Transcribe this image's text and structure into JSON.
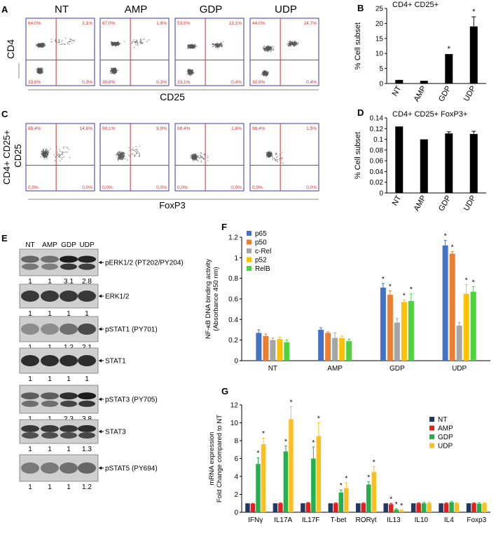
{
  "panel_labels": {
    "A": "A",
    "B": "B",
    "C": "C",
    "D": "D",
    "E": "E",
    "F": "F",
    "G": "G"
  },
  "flow_A": {
    "titles": [
      "NT",
      "AMP",
      "GDP",
      "UDP"
    ],
    "ylabel": "CD4",
    "xlabel": "CD25",
    "quadrants": [
      {
        "ul": "64,0%",
        "ur": "2,1%",
        "ll": "33,6%",
        "lr": "0,3%"
      },
      {
        "ul": "67,0%",
        "ur": "1,8%",
        "ll": "30,8%",
        "lr": "0,3%"
      },
      {
        "ul": "53,5%",
        "ur": "13,1%",
        "ll": "33,1%",
        "lr": "0,4%"
      },
      {
        "ul": "44,0%",
        "ur": "24,7%",
        "ll": "30,9%",
        "lr": "0,4%"
      }
    ],
    "dot_color": "#555555",
    "gate_color": "#d32f2f",
    "frame_color": "#3a3aa8"
  },
  "flow_C": {
    "ylabel_lines": [
      "CD4+ CD25+",
      "CD25"
    ],
    "xlabel": "FoxP3",
    "quadrants": [
      {
        "ul": "85,4%",
        "ur": "14,6%",
        "ll": "0,0%",
        "lr": "0,0%"
      },
      {
        "ul": "90,1%",
        "ur": "9,9%",
        "ll": "0,0%",
        "lr": "0,0%"
      },
      {
        "ul": "98,4%",
        "ur": "1,6%",
        "ll": "0,0%",
        "lr": "0,0%"
      },
      {
        "ul": "98,4%",
        "ur": "1,5%",
        "ll": "0,0%",
        "lr": "0,0%"
      }
    ]
  },
  "blots": {
    "lanes": [
      "NT",
      "AMP",
      "GDP",
      "UDP"
    ],
    "rows": [
      {
        "label": "pERK1/2 (PT202/PY204)",
        "values": [
          "1",
          "1",
          "3.1",
          "2.8"
        ]
      },
      {
        "label": "ERK1/2",
        "values": [
          "1",
          "1",
          "1",
          "1"
        ]
      },
      {
        "label": "pSTAT1 (PY701)",
        "values": [
          "1",
          "1",
          "1.2",
          "2.1"
        ]
      },
      {
        "label": "STAT1",
        "values": [
          "1",
          "1",
          "1",
          "1"
        ]
      },
      {
        "label": "pSTAT3 (PY705)",
        "values": [
          "1",
          "1",
          "2.3",
          "3.8"
        ]
      },
      {
        "label": "STAT3",
        "values": [
          "1",
          "1",
          "1",
          "1.3"
        ]
      },
      {
        "label": "pSTAT5 (PY694)",
        "values": [
          "1",
          "1",
          "1",
          "1.2"
        ]
      }
    ]
  },
  "chart_data": [
    {
      "panel": "B",
      "type": "bar",
      "title": "CD4+ CD25+",
      "ylabel": "% Cell subset",
      "categories": [
        "NT",
        "AMP",
        "GDP",
        "UDP"
      ],
      "values": [
        1.2,
        0.9,
        9.8,
        19.0
      ],
      "errors": [
        0,
        0,
        0,
        3.2
      ],
      "significant": [
        false,
        false,
        true,
        true
      ],
      "ylim": [
        0,
        25
      ],
      "yticks": [
        0,
        5,
        10,
        15,
        20,
        25
      ],
      "ytick_labels": [
        "0",
        "5",
        "10",
        "15",
        "20",
        "25"
      ],
      "color": "#000000"
    },
    {
      "panel": "D",
      "type": "bar",
      "title": "CD4+ CD25+ FoxP3+",
      "ylabel": "% Cell subset",
      "categories": [
        "NT",
        "AMP",
        "GDP",
        "UDP"
      ],
      "values": [
        0.124,
        0.1,
        0.111,
        0.11
      ],
      "errors": [
        0,
        0,
        0.003,
        0.005
      ],
      "ylim": [
        0,
        0.14
      ],
      "yticks": [
        0,
        0.02,
        0.04,
        0.06,
        0.08,
        0.1,
        0.12,
        0.14
      ],
      "ytick_labels": [
        "0",
        "0.02",
        "0.04",
        "0.06",
        "0.08",
        "0.1",
        "0.12",
        "0.14"
      ],
      "color": "#000000"
    },
    {
      "panel": "F",
      "type": "bar",
      "ylabel_lines": [
        "NF-κB DNA binding activity",
        "(Absorbance 450 nm)"
      ],
      "categories": [
        "NT",
        "AMP",
        "GDP",
        "UDP"
      ],
      "ylim": [
        0,
        1.2
      ],
      "yticks": [
        0,
        0.2,
        0.4,
        0.6,
        0.8,
        1,
        1.2
      ],
      "ytick_labels": [
        "0",
        "0.2",
        "0.4",
        "0.6",
        "0.8",
        "1",
        "1.2"
      ],
      "legend_position": "top-left",
      "series": [
        {
          "name": "p65",
          "color": "#4472c4",
          "values": [
            0.27,
            0.3,
            0.71,
            1.12
          ],
          "errors": [
            0.03,
            0.02,
            0.04,
            0.05
          ],
          "significant": [
            false,
            false,
            true,
            true
          ]
        },
        {
          "name": "p50",
          "color": "#ed7d31",
          "values": [
            0.24,
            0.27,
            0.64,
            1.04
          ],
          "errors": [
            0.02,
            0.01,
            0.04,
            0.02
          ],
          "significant": [
            false,
            false,
            true,
            true
          ]
        },
        {
          "name": "c-Rel",
          "color": "#a5a5a5",
          "values": [
            0.2,
            0.22,
            0.37,
            0.34
          ],
          "errors": [
            0.02,
            0.05,
            0.04,
            0.03
          ],
          "significant": [
            false,
            false,
            false,
            false
          ]
        },
        {
          "name": "p52",
          "color": "#ffc000",
          "values": [
            0.21,
            0.22,
            0.57,
            0.65
          ],
          "errors": [
            0.02,
            0.02,
            0.02,
            0.09
          ],
          "significant": [
            false,
            false,
            true,
            true
          ]
        },
        {
          "name": "RelB",
          "color": "#4fd33d",
          "values": [
            0.18,
            0.19,
            0.58,
            0.67
          ],
          "errors": [
            0.02,
            0.02,
            0.07,
            0.05
          ],
          "significant": [
            false,
            false,
            true,
            true
          ]
        }
      ]
    },
    {
      "panel": "G",
      "type": "bar",
      "ylabel_lines": [
        "mRNA expression",
        "Fold Change compared to NT"
      ],
      "categories": [
        "IFNγ",
        "IL17A",
        "IL17F",
        "T-bet",
        "RORγt",
        "IL13",
        "IL10",
        "IL4",
        "Foxp3"
      ],
      "ylim": [
        0,
        12
      ],
      "yticks": [
        0,
        2,
        4,
        6,
        8,
        10,
        12
      ],
      "ytick_labels": [
        "0",
        "2",
        "4",
        "6",
        "8",
        "10",
        "12"
      ],
      "legend_position": "top-right",
      "series": [
        {
          "name": "NT",
          "color": "#203864",
          "values": [
            1,
            1,
            1,
            1,
            1,
            1,
            1,
            1,
            1
          ],
          "errors": [
            0,
            0,
            0,
            0,
            0,
            0,
            0,
            0,
            0
          ],
          "significant": [
            false,
            false,
            false,
            false,
            false,
            false,
            false,
            false,
            false
          ]
        },
        {
          "name": "AMP",
          "color": "#e3201b",
          "values": [
            0.95,
            1.0,
            1.05,
            1.0,
            1.0,
            0.9,
            1.0,
            1.0,
            1.0
          ],
          "errors": [
            0.05,
            0.05,
            0.05,
            0.05,
            0.05,
            0.1,
            0.05,
            0.05,
            0.05
          ],
          "significant": [
            false,
            false,
            false,
            false,
            false,
            true,
            false,
            false,
            false
          ]
        },
        {
          "name": "GDP",
          "color": "#22b14c",
          "values": [
            5.4,
            6.8,
            6.0,
            2.2,
            3.1,
            0.3,
            1.0,
            1.1,
            0.95
          ],
          "errors": [
            0.7,
            0.6,
            1.3,
            0.3,
            0.3,
            0.1,
            0.1,
            0.1,
            0.1
          ],
          "significant": [
            true,
            true,
            true,
            true,
            true,
            true,
            false,
            false,
            false
          ]
        },
        {
          "name": "UDP",
          "color": "#fbbf24",
          "values": [
            7.6,
            10.4,
            8.5,
            2.7,
            4.5,
            0.2,
            1.05,
            1.0,
            1.0
          ],
          "errors": [
            0.7,
            1.4,
            1.5,
            0.6,
            0.6,
            0.05,
            0.1,
            0.05,
            0.05
          ],
          "significant": [
            true,
            true,
            true,
            true,
            true,
            true,
            false,
            false,
            false
          ]
        }
      ]
    }
  ]
}
